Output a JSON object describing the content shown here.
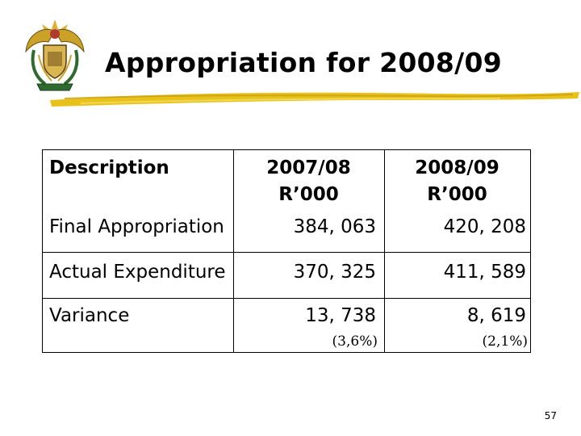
{
  "slide": {
    "title": "Appropriation for 2008/09",
    "page_number": "57"
  },
  "table": {
    "headers": {
      "description": "Description",
      "col1_line1": "2007/08",
      "col1_line2": "R’000",
      "col2_line1": "2008/09",
      "col2_line2": "R’000"
    },
    "rows": [
      {
        "label": "Final Appropriation",
        "v1": "384, 063",
        "v2": "420, 208"
      },
      {
        "label": "Actual Expenditure",
        "v1": "370, 325",
        "v2": "411, 589"
      },
      {
        "label": "Variance",
        "v1": "13, 738",
        "v2": "8, 619",
        "v1_note": "(3,6%)",
        "v2_note": "(2,1%)"
      }
    ]
  },
  "colors": {
    "brush_stroke": "#e8c21a",
    "emblem_gold": "#c9a227",
    "emblem_green": "#2f6b2f",
    "emblem_red": "#b03a2e"
  },
  "icons": {
    "emblem": "coat-of-arms-icon"
  }
}
